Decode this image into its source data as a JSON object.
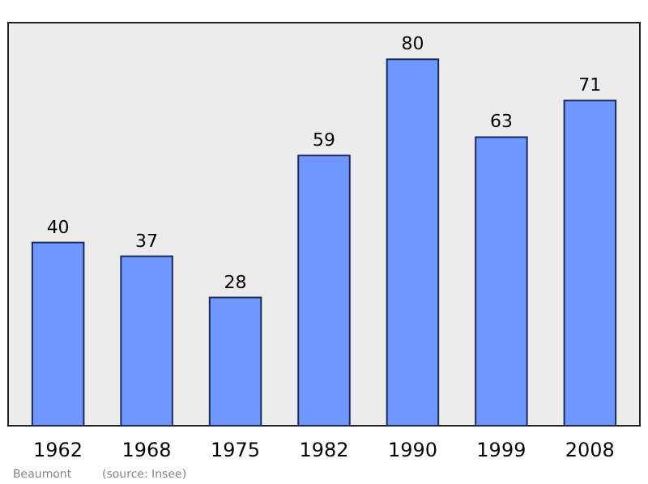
{
  "chart_data": {
    "type": "bar",
    "categories": [
      "1962",
      "1968",
      "1975",
      "1982",
      "1990",
      "1999",
      "2008"
    ],
    "values": [
      40,
      37,
      28,
      59,
      80,
      63,
      71
    ],
    "color": "#7097fd",
    "data_labels": true,
    "annotations": [
      "Beaumont",
      "(source: Insee)"
    ]
  }
}
